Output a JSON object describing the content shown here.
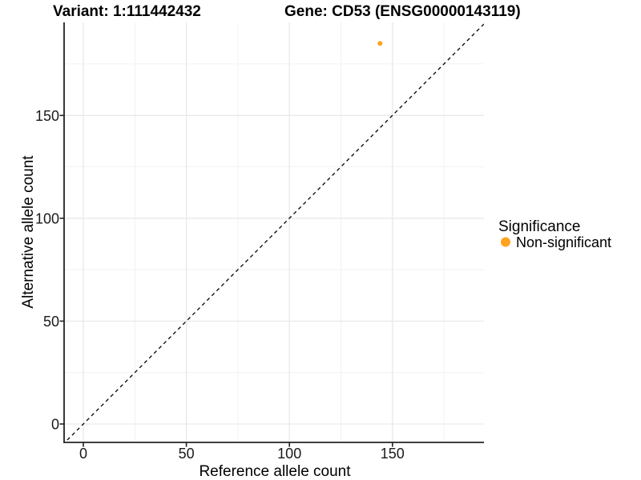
{
  "chart_data": {
    "type": "scatter",
    "title_left": "Variant: 1:111442432",
    "title_right": "Gene: CD53 (ENSG00000143119)",
    "xlabel": "Reference allele count",
    "ylabel": "Alternative allele count",
    "x_ticks": [
      0,
      50,
      100,
      150
    ],
    "y_ticks": [
      0,
      50,
      100,
      150
    ],
    "xlim": [
      -9.3,
      194.5
    ],
    "ylim": [
      -8.9,
      195.1
    ],
    "grid": {
      "major": [
        0,
        50,
        100,
        150
      ],
      "minor": [
        25,
        75,
        125,
        175
      ],
      "visible": true
    },
    "identity_line": {
      "type": "y=x",
      "style": "dashed",
      "color": "#000000"
    },
    "series": [
      {
        "name": "Non-significant",
        "color": "#FFA320",
        "point_radius": 3,
        "points": [
          {
            "x": 144,
            "y": 185
          }
        ]
      }
    ],
    "legend": {
      "position": "right",
      "title": "Significance",
      "entries": [
        {
          "label": "Non-significant",
          "color": "#FFA320"
        }
      ]
    }
  }
}
